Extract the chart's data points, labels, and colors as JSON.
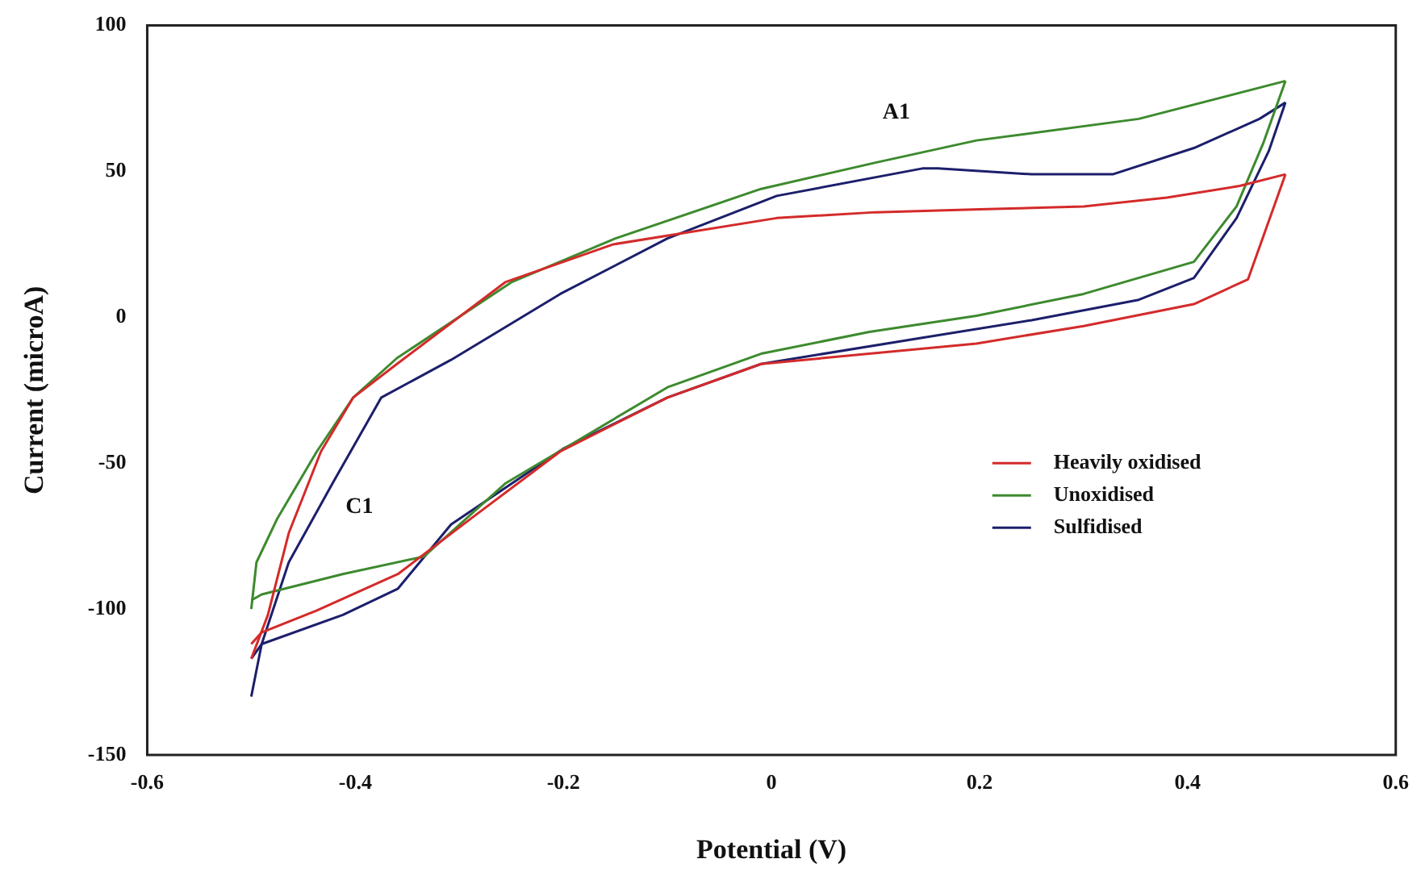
{
  "chart_data": {
    "type": "line",
    "xlabel": "Potential (V)",
    "ylabel": "Current (microA)",
    "xlim": [
      -0.6,
      0.6
    ],
    "xticks": [
      -0.6,
      -0.4,
      -0.2,
      0,
      0.2,
      0.4,
      0.6
    ],
    "ylim": [
      -150,
      100
    ],
    "yticks": [
      -150,
      -100,
      -50,
      0,
      50,
      100
    ],
    "grid": false,
    "legend": "right",
    "marker": "none",
    "line_style": "solid",
    "annotations": [
      "A1",
      "C1"
    ],
    "series": [
      {
        "name": "Heavily oxidised",
        "color": "#d42a2a",
        "x": [
          -0.5,
          -0.484,
          -0.464,
          -0.433,
          -0.402,
          -0.36,
          -0.256,
          -0.152,
          0.005,
          0.1,
          0.2,
          0.3,
          0.38,
          0.45,
          0.494
        ],
        "values": [
          -117,
          -102,
          -74,
          -46,
          -27.5,
          -16,
          12,
          25,
          34,
          36,
          37,
          38,
          41,
          45,
          49
        ]
      },
      {
        "color": "#d42a2a",
        "x": [
          0.494,
          0.458,
          0.406,
          0.3,
          0.197,
          -0.01,
          -0.1,
          -0.203,
          -0.287,
          -0.359,
          -0.437,
          -0.49,
          -0.5
        ],
        "values": [
          49,
          13,
          4.5,
          -3,
          -9,
          -16,
          -27.5,
          -46,
          -68.5,
          -88,
          -100.5,
          -108,
          -112
        ]
      },
      {
        "name": "Unoxidised",
        "color": "#3d8a2e",
        "x": [
          -0.5,
          -0.495,
          -0.475,
          -0.437,
          -0.402,
          -0.36,
          -0.25,
          -0.15,
          -0.01,
          0.1,
          0.197,
          0.353,
          0.494
        ],
        "values": [
          -100,
          -84,
          -69,
          -46,
          -27.5,
          -14,
          12,
          27,
          44,
          53,
          60.6,
          68,
          81
        ]
      },
      {
        "color": "#3d8a2e",
        "x": [
          0.494,
          0.473,
          0.447,
          0.406,
          0.3,
          0.197,
          0.094,
          -0.01,
          -0.1,
          -0.256,
          -0.334,
          -0.412,
          -0.49,
          -0.5
        ],
        "values": [
          81,
          60,
          38,
          19,
          8,
          0.5,
          -5,
          -12.5,
          -24,
          -57,
          -82,
          -88,
          -95,
          -97
        ]
      },
      {
        "name": "Sulfidised",
        "color": "#1c1f6b",
        "x": [
          -0.5,
          -0.49,
          -0.464,
          -0.422,
          -0.375,
          -0.308,
          -0.203,
          -0.1,
          0.005,
          0.145,
          0.16,
          0.25,
          0.328,
          0.406,
          0.469,
          0.494
        ],
        "values": [
          -130,
          -112,
          -84,
          -57,
          -27.5,
          -14.6,
          8,
          27,
          41.6,
          51,
          51,
          49,
          49,
          58,
          68,
          73.6
        ]
      },
      {
        "color": "#1c1f6b",
        "x": [
          0.494,
          0.478,
          0.447,
          0.406,
          0.353,
          0.25,
          0.145,
          -0.01,
          -0.1,
          -0.2,
          -0.308,
          -0.359,
          -0.412,
          -0.49,
          -0.5
        ],
        "values": [
          73.6,
          57,
          34,
          13.5,
          6,
          -1,
          -7,
          -16,
          -27.5,
          -45,
          -71,
          -93,
          -102,
          -112,
          -117
        ]
      }
    ]
  }
}
